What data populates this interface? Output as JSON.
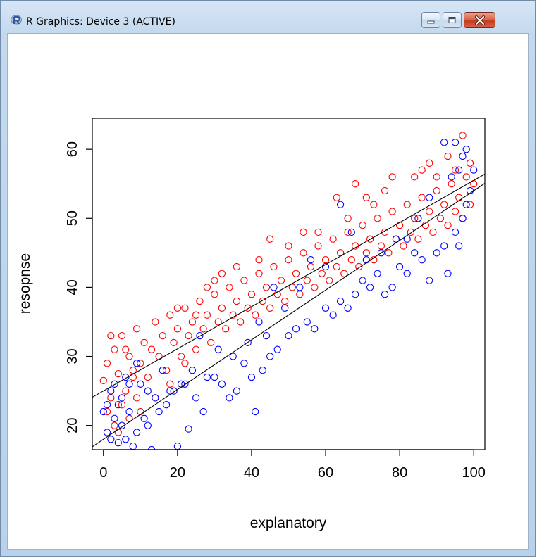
{
  "window": {
    "title": "R Graphics: Device 3 (ACTIVE)",
    "icons": {
      "app": "r-logo-icon",
      "minimize": "minimize-icon",
      "maximize": "maximize-icon",
      "close": "close-icon"
    }
  },
  "chart_data": {
    "type": "scatter",
    "title": "",
    "xlabel": "explanatory",
    "ylabel": "resopnse",
    "xlim": [
      -3,
      103
    ],
    "ylim": [
      16.5,
      64.5
    ],
    "xticks": [
      "0",
      "20",
      "40",
      "60",
      "80",
      "100"
    ],
    "yticks": [
      "20",
      "30",
      "40",
      "50",
      "60"
    ],
    "grid": false,
    "legend": "none",
    "colors": {
      "red": "#ff0000",
      "blue": "#0000ff",
      "line": "#000000",
      "axes": "#000000"
    },
    "series": [
      {
        "color": "red",
        "marker": "open-circle",
        "points": [
          [
            0,
            26.5
          ],
          [
            1,
            29
          ],
          [
            2,
            24
          ],
          [
            3,
            31
          ],
          [
            4,
            27.5
          ],
          [
            5,
            33
          ],
          [
            6,
            25
          ],
          [
            7,
            30
          ],
          [
            8,
            28
          ],
          [
            9,
            34
          ],
          [
            10,
            29
          ],
          [
            11,
            32
          ],
          [
            12,
            27
          ],
          [
            13,
            31
          ],
          [
            14,
            35
          ],
          [
            15,
            30
          ],
          [
            16,
            33
          ],
          [
            17,
            28
          ],
          [
            18,
            36
          ],
          [
            19,
            32
          ],
          [
            20,
            34
          ],
          [
            21,
            30
          ],
          [
            22,
            37
          ],
          [
            23,
            33
          ],
          [
            24,
            35
          ],
          [
            25,
            31
          ],
          [
            26,
            38
          ],
          [
            27,
            34
          ],
          [
            28,
            36
          ],
          [
            29,
            32
          ],
          [
            30,
            39
          ],
          [
            31,
            35
          ],
          [
            32,
            37
          ],
          [
            33,
            34
          ],
          [
            34,
            40
          ],
          [
            35,
            36
          ],
          [
            36,
            38
          ],
          [
            37,
            35
          ],
          [
            38,
            41
          ],
          [
            39,
            37
          ],
          [
            40,
            39
          ],
          [
            41,
            36
          ],
          [
            42,
            42
          ],
          [
            43,
            38
          ],
          [
            44,
            40
          ],
          [
            45,
            37
          ],
          [
            46,
            43
          ],
          [
            47,
            39
          ],
          [
            48,
            41
          ],
          [
            49,
            38
          ],
          [
            50,
            44
          ],
          [
            51,
            40
          ],
          [
            52,
            42
          ],
          [
            53,
            39
          ],
          [
            54,
            45
          ],
          [
            55,
            41
          ],
          [
            56,
            43
          ],
          [
            57,
            40
          ],
          [
            58,
            46
          ],
          [
            59,
            42
          ],
          [
            60,
            44
          ],
          [
            61,
            41
          ],
          [
            62,
            47
          ],
          [
            63,
            43
          ],
          [
            64,
            45
          ],
          [
            65,
            42
          ],
          [
            66,
            48
          ],
          [
            67,
            44
          ],
          [
            68,
            46
          ],
          [
            69,
            43
          ],
          [
            70,
            49
          ],
          [
            71,
            45
          ],
          [
            72,
            47
          ],
          [
            73,
            44
          ],
          [
            74,
            50
          ],
          [
            75,
            46
          ],
          [
            76,
            48
          ],
          [
            77,
            45
          ],
          [
            78,
            51
          ],
          [
            79,
            47
          ],
          [
            80,
            49
          ],
          [
            81,
            46
          ],
          [
            82,
            52
          ],
          [
            83,
            48
          ],
          [
            84,
            50
          ],
          [
            85,
            47
          ],
          [
            86,
            53
          ],
          [
            87,
            49
          ],
          [
            88,
            51
          ],
          [
            89,
            48
          ],
          [
            90,
            54
          ],
          [
            91,
            50
          ],
          [
            92,
            52
          ],
          [
            93,
            49
          ],
          [
            94,
            55
          ],
          [
            95,
            51
          ],
          [
            96,
            53
          ],
          [
            97,
            50
          ],
          [
            98,
            56
          ],
          [
            99,
            52
          ],
          [
            1,
            22
          ],
          [
            3,
            20
          ],
          [
            5,
            23
          ],
          [
            7,
            21
          ],
          [
            4,
            19
          ],
          [
            9,
            24
          ],
          [
            2,
            33
          ],
          [
            6,
            31
          ],
          [
            8,
            27
          ],
          [
            10,
            22
          ],
          [
            14,
            24
          ],
          [
            18,
            26
          ],
          [
            22,
            29
          ],
          [
            25,
            36
          ],
          [
            28,
            40
          ],
          [
            32,
            42
          ],
          [
            36,
            43
          ],
          [
            45,
            47
          ],
          [
            54,
            48
          ],
          [
            63,
            53
          ],
          [
            68,
            55
          ],
          [
            73,
            52
          ],
          [
            78,
            56
          ],
          [
            84,
            56
          ],
          [
            88,
            58
          ],
          [
            93,
            59
          ],
          [
            97,
            62
          ],
          [
            99,
            58
          ],
          [
            100,
            55
          ],
          [
            95,
            57
          ],
          [
            90,
            56
          ],
          [
            86,
            57
          ],
          [
            76,
            54
          ],
          [
            71,
            53
          ],
          [
            66,
            50
          ],
          [
            58,
            48
          ],
          [
            50,
            46
          ],
          [
            42,
            44
          ],
          [
            30,
            41
          ],
          [
            20,
            37
          ]
        ]
      },
      {
        "color": "blue",
        "marker": "open-circle",
        "points": [
          [
            1,
            19
          ],
          [
            2,
            18
          ],
          [
            3,
            21
          ],
          [
            4,
            17.5
          ],
          [
            5,
            20
          ],
          [
            6,
            18
          ],
          [
            7,
            22
          ],
          [
            8,
            17
          ],
          [
            9,
            19
          ],
          [
            11,
            21
          ],
          [
            12,
            20
          ],
          [
            13,
            16.5
          ],
          [
            15,
            22
          ],
          [
            17,
            23
          ],
          [
            19,
            25
          ],
          [
            20,
            17
          ],
          [
            22,
            26
          ],
          [
            23,
            19.5
          ],
          [
            25,
            24
          ],
          [
            27,
            22
          ],
          [
            30,
            27
          ],
          [
            32,
            26
          ],
          [
            34,
            24
          ],
          [
            36,
            25
          ],
          [
            38,
            29
          ],
          [
            40,
            27
          ],
          [
            41,
            22
          ],
          [
            43,
            28
          ],
          [
            45,
            30
          ],
          [
            47,
            31
          ],
          [
            50,
            33
          ],
          [
            52,
            34
          ],
          [
            55,
            35
          ],
          [
            57,
            34
          ],
          [
            60,
            37
          ],
          [
            62,
            36
          ],
          [
            64,
            38
          ],
          [
            66,
            37
          ],
          [
            68,
            39
          ],
          [
            70,
            41
          ],
          [
            72,
            40
          ],
          [
            74,
            42
          ],
          [
            76,
            39
          ],
          [
            78,
            40
          ],
          [
            80,
            43
          ],
          [
            82,
            42
          ],
          [
            84,
            45
          ],
          [
            86,
            44
          ],
          [
            88,
            41
          ],
          [
            90,
            45
          ],
          [
            92,
            46
          ],
          [
            93,
            42
          ],
          [
            95,
            48
          ],
          [
            96,
            46
          ],
          [
            97,
            50
          ],
          [
            98,
            52
          ],
          [
            99,
            54
          ],
          [
            97,
            59
          ],
          [
            95,
            61
          ],
          [
            98,
            60
          ],
          [
            94,
            56
          ],
          [
            96,
            57
          ],
          [
            100,
            57
          ],
          [
            92,
            61
          ],
          [
            88,
            53
          ],
          [
            85,
            50
          ],
          [
            82,
            47
          ],
          [
            79,
            47
          ],
          [
            75,
            45
          ],
          [
            71,
            44
          ],
          [
            67,
            48
          ],
          [
            64,
            52
          ],
          [
            60,
            43
          ],
          [
            56,
            44
          ],
          [
            53,
            40
          ],
          [
            49,
            37
          ],
          [
            46,
            40
          ],
          [
            44,
            33
          ],
          [
            42,
            35
          ],
          [
            39,
            32
          ],
          [
            35,
            30
          ],
          [
            31,
            31
          ],
          [
            28,
            27
          ],
          [
            26,
            33
          ],
          [
            24,
            28
          ],
          [
            21,
            26
          ],
          [
            18,
            25
          ],
          [
            16,
            28
          ],
          [
            14,
            24
          ],
          [
            12,
            25
          ],
          [
            10,
            26
          ],
          [
            9,
            29
          ],
          [
            7,
            26
          ],
          [
            6,
            27
          ],
          [
            5,
            24
          ],
          [
            4,
            23
          ],
          [
            3,
            26
          ],
          [
            2,
            25
          ],
          [
            1,
            23
          ],
          [
            0,
            22
          ]
        ]
      }
    ],
    "lines": [
      {
        "color": "line",
        "intercept": 25.0,
        "slope": 0.305
      },
      {
        "color": "line",
        "intercept": 18.0,
        "slope": 0.36
      }
    ]
  }
}
